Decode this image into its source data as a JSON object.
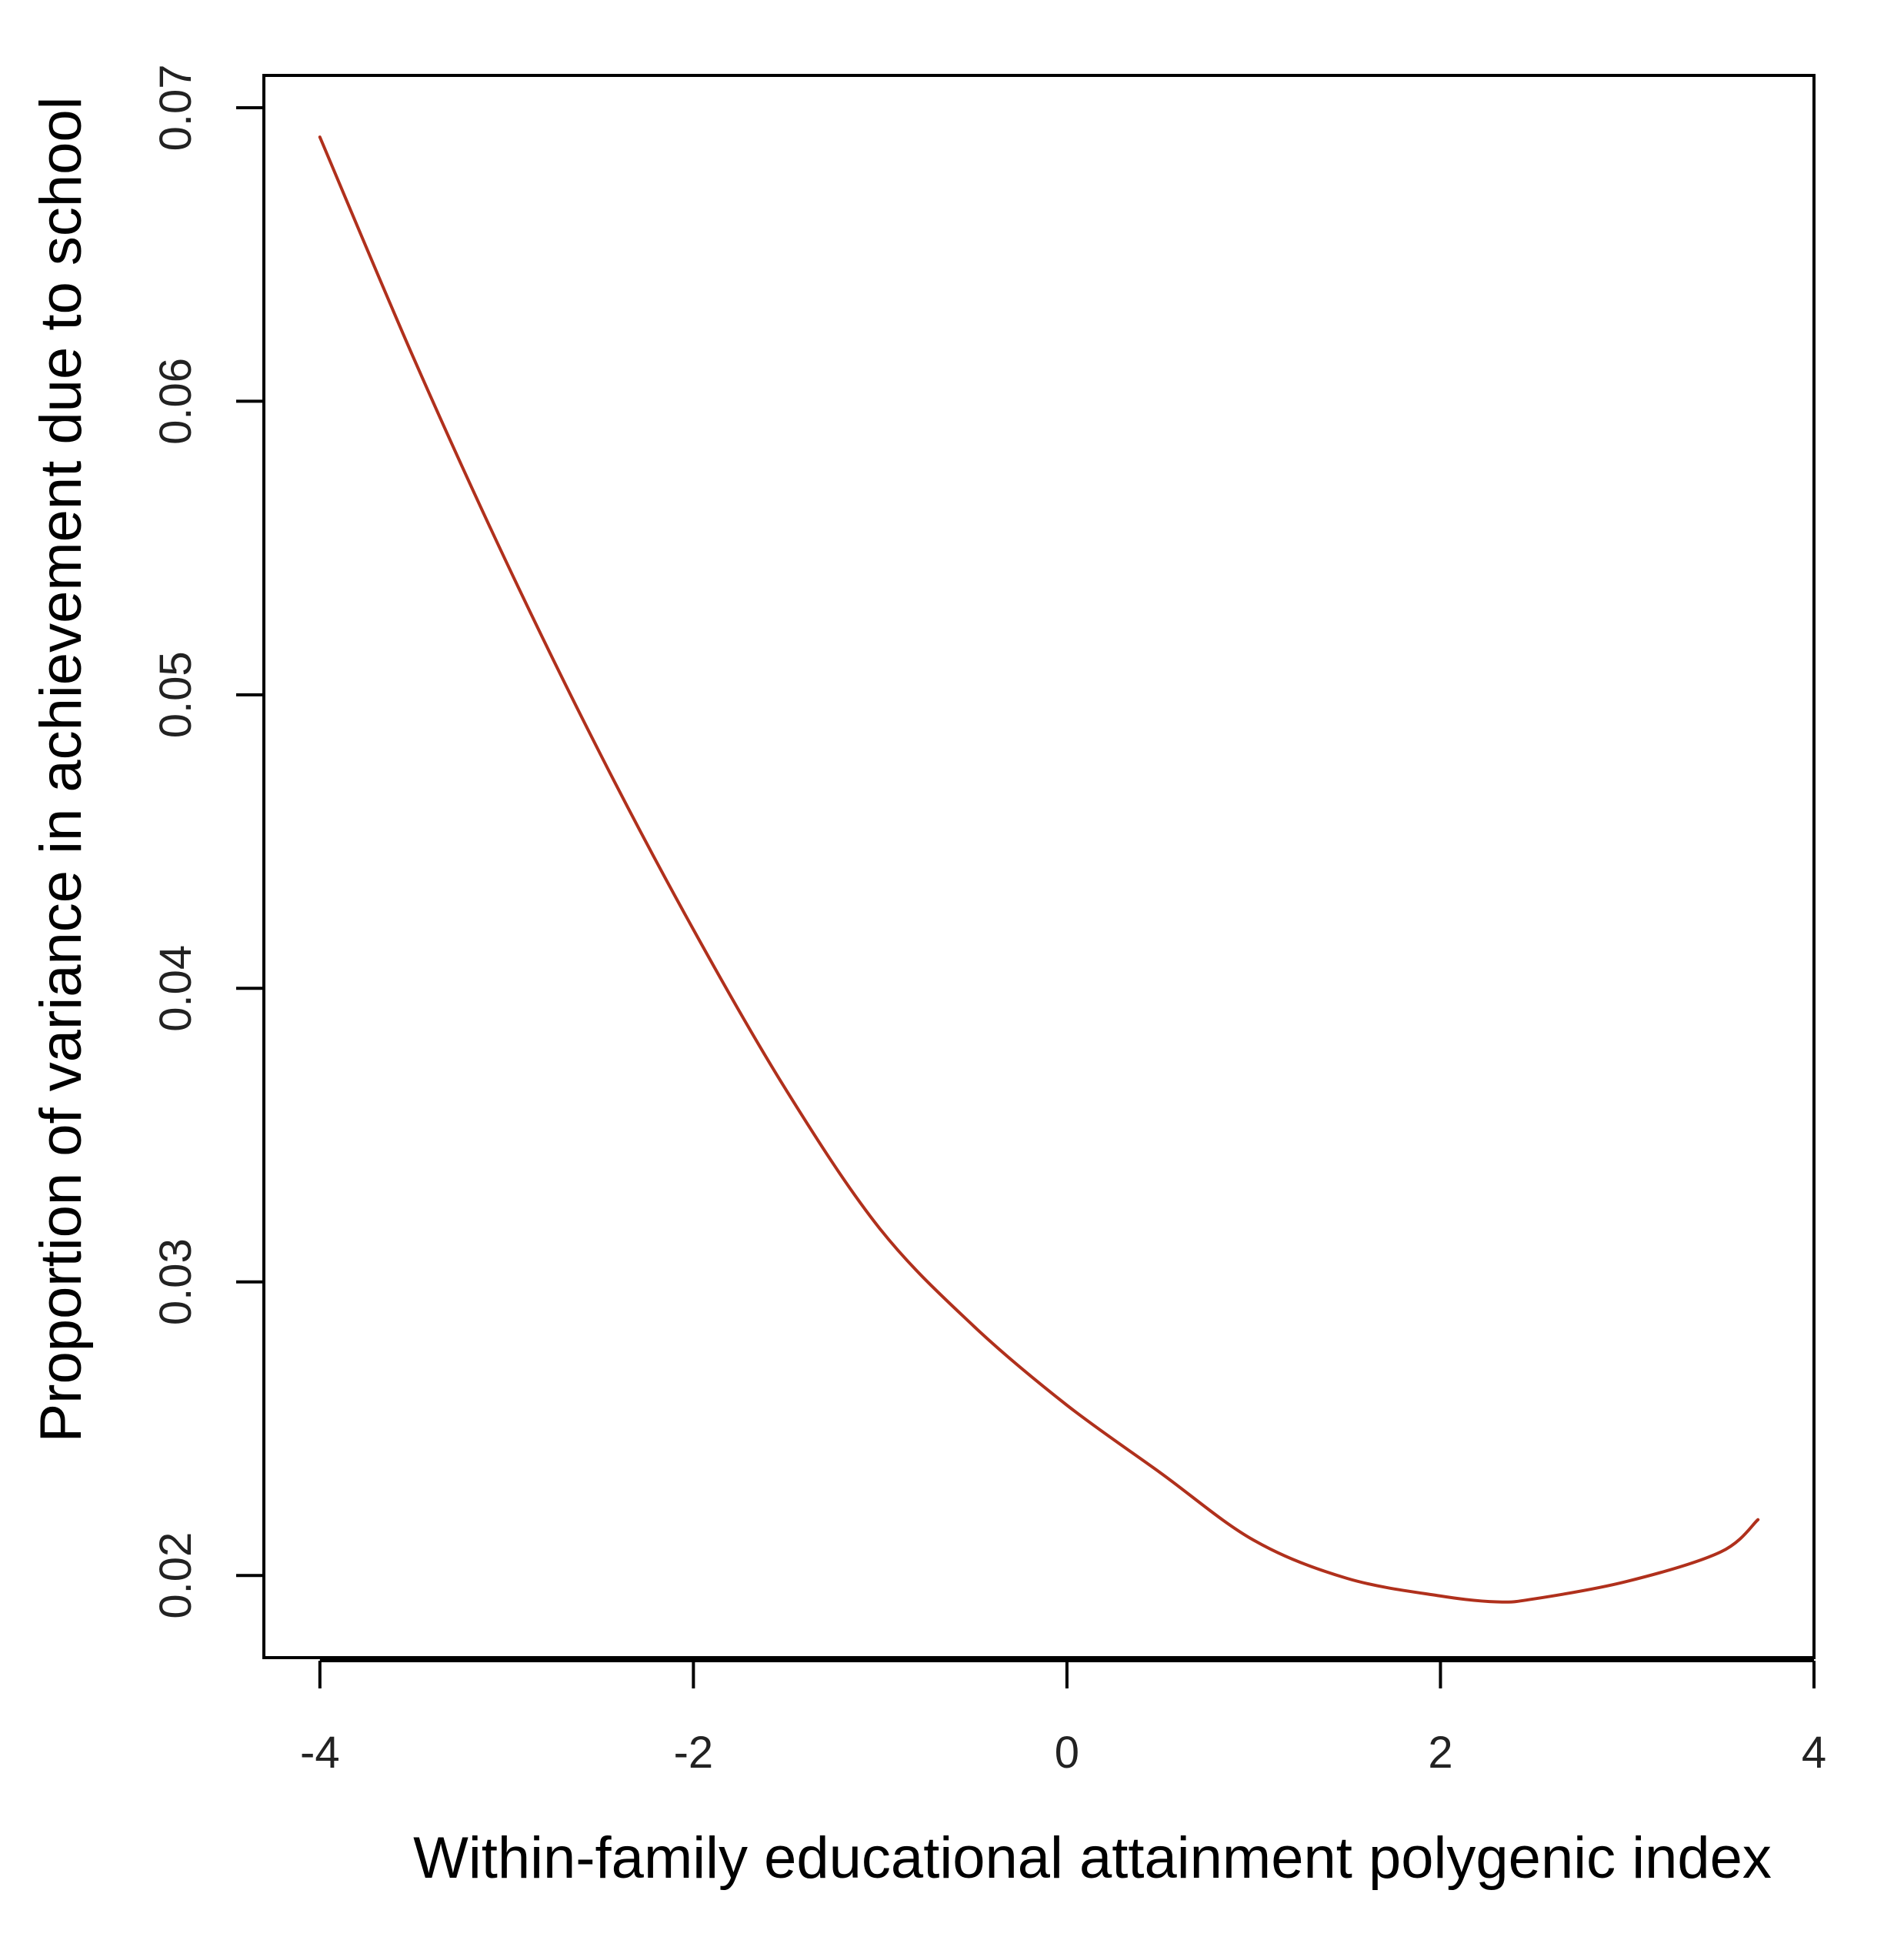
{
  "chart_data": {
    "type": "line",
    "title": "",
    "xlabel": "Within-family educational attainment polygenic index",
    "ylabel": "Proportion of variance in achievement due to school",
    "xlim": [
      -4.3,
      4.0
    ],
    "ylim": [
      0.0172,
      0.0711
    ],
    "x_ticks": [
      -4,
      -2,
      0,
      2,
      4
    ],
    "y_ticks": [
      0.02,
      0.03,
      0.04,
      0.05,
      0.06,
      0.07
    ],
    "x_tick_labels": [
      "-4",
      "-2",
      "0",
      "2",
      "4"
    ],
    "y_tick_labels": [
      "0.02",
      "0.03",
      "0.04",
      "0.05",
      "0.06",
      "0.07"
    ],
    "grid": false,
    "series": [
      {
        "color": "#b0301c",
        "x": [
          -4.0,
          -3.5,
          -3.0,
          -2.5,
          -2.0,
          -1.5,
          -1.0,
          -0.5,
          0.0,
          0.5,
          1.0,
          1.5,
          2.0,
          2.3,
          2.5,
          3.0,
          3.5,
          3.7
        ],
        "y": [
          0.069,
          0.0615,
          0.0545,
          0.048,
          0.042,
          0.0365,
          0.0318,
          0.0285,
          0.0258,
          0.0235,
          0.0212,
          0.0199,
          0.0193,
          0.0191,
          0.0192,
          0.0198,
          0.0208,
          0.0219
        ]
      }
    ]
  }
}
